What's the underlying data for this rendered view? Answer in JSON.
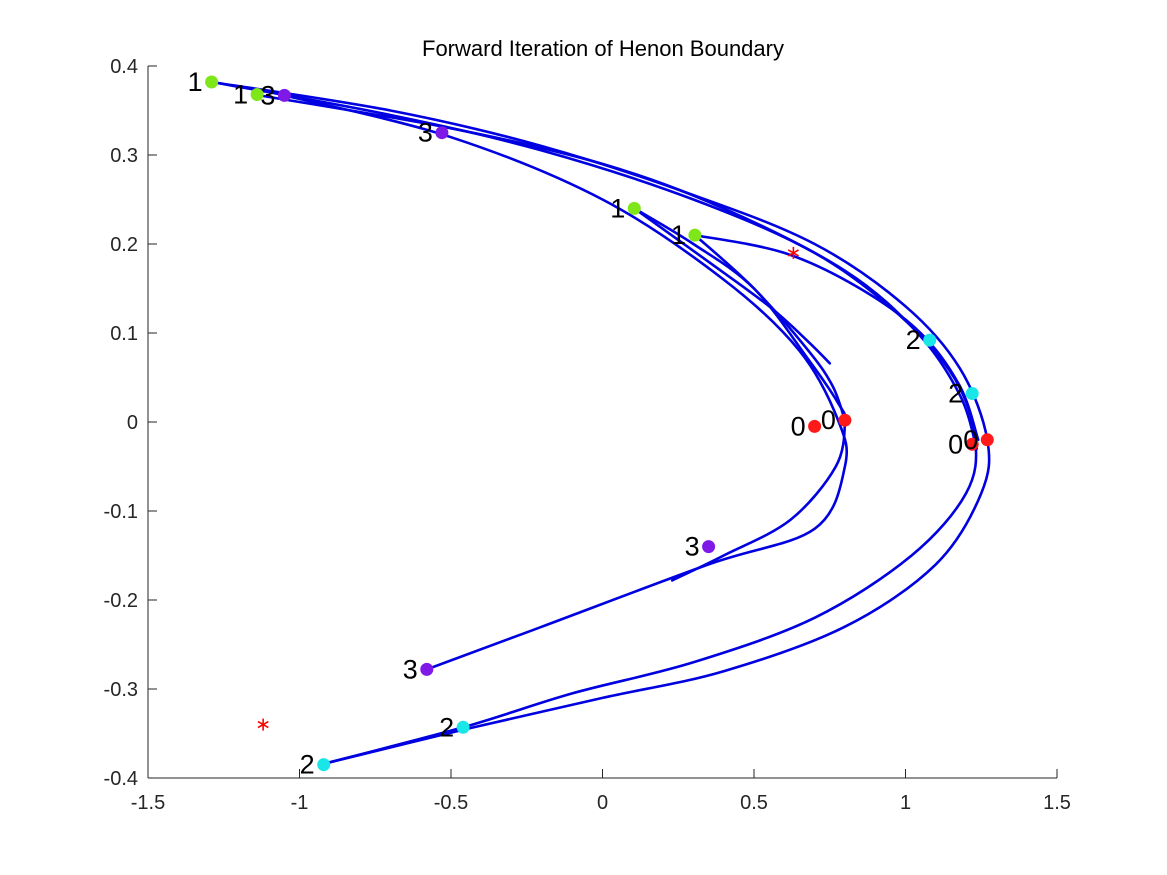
{
  "chart_data": {
    "type": "line",
    "title": "Forward Iteration of Henon Boundary",
    "xlabel": "",
    "ylabel": "",
    "xlim": [
      -1.5,
      1.5
    ],
    "ylim": [
      -0.4,
      0.4
    ],
    "xticks": [
      -1.5,
      -1,
      -0.5,
      0,
      0.5,
      1,
      1.5
    ],
    "xtick_labels": [
      "-1.5",
      "-1",
      "-0.5",
      "0",
      "0.5",
      "1",
      "1.5"
    ],
    "yticks": [
      -0.4,
      -0.3,
      -0.2,
      -0.1,
      0,
      0.1,
      0.2,
      0.3,
      0.4
    ],
    "ytick_labels": [
      "-0.4",
      "-0.3",
      "-0.2",
      "-0.1",
      "0",
      "0.1",
      "0.2",
      "0.3",
      "0.4"
    ],
    "grid": false,
    "curve_color": "#0000e0",
    "series": [
      {
        "x": [
          -1.29,
          -0.7,
          -0.2,
          0.3,
          0.7,
          1.0,
          1.18,
          1.27,
          1.25,
          1.1,
          0.8,
          0.4,
          0.0,
          -0.45,
          -0.93
        ],
        "y": [
          0.382,
          0.35,
          0.31,
          0.255,
          0.2,
          0.13,
          0.06,
          -0.02,
          -0.08,
          -0.16,
          -0.23,
          -0.28,
          -0.31,
          -0.345,
          -0.385
        ]
      },
      {
        "x": [
          -1.29,
          -0.7,
          -0.2,
          0.3,
          0.7,
          0.98,
          1.16,
          1.23,
          1.2,
          1.02,
          0.7,
          0.3,
          -0.1,
          -0.46,
          -0.93
        ],
        "y": [
          0.382,
          0.345,
          0.305,
          0.25,
          0.19,
          0.12,
          0.05,
          -0.02,
          -0.08,
          -0.15,
          -0.22,
          -0.27,
          -0.305,
          -0.343,
          -0.385
        ]
      },
      {
        "x": [
          -1.15,
          -0.5,
          0.0,
          0.4,
          0.8,
          1.04,
          1.18,
          1.235
        ],
        "y": [
          0.368,
          0.33,
          0.29,
          0.24,
          0.17,
          0.1,
          0.03,
          -0.03
        ]
      },
      {
        "x": [
          -1.05,
          -0.5,
          0.0,
          0.4,
          0.65,
          0.78,
          0.8,
          0.7,
          0.35,
          -0.2,
          -0.58
        ],
        "y": [
          0.367,
          0.32,
          0.25,
          0.16,
          0.08,
          0.0,
          -0.05,
          -0.12,
          -0.16,
          -0.23,
          -0.278
        ]
      },
      {
        "x": [
          0.105,
          0.3,
          0.5,
          0.68,
          0.78,
          0.8,
          0.77,
          0.62,
          0.4,
          0.23
        ],
        "y": [
          0.24,
          0.2,
          0.15,
          0.07,
          0.02,
          0.0,
          -0.05,
          -0.11,
          -0.15,
          -0.178
        ]
      },
      {
        "x": [
          0.105,
          0.35,
          0.55,
          0.68,
          0.75
        ],
        "y": [
          0.24,
          0.18,
          0.13,
          0.09,
          0.066
        ]
      },
      {
        "x": [
          0.305,
          0.6,
          0.85,
          1.05,
          1.18,
          1.24
        ],
        "y": [
          0.21,
          0.19,
          0.15,
          0.1,
          0.04,
          -0.02
        ]
      },
      {
        "x": [
          0.305,
          0.5,
          0.68,
          0.76,
          0.8
        ],
        "y": [
          0.21,
          0.15,
          0.08,
          0.04,
          0.002
        ]
      }
    ],
    "points": [
      {
        "x": -1.29,
        "y": 0.382,
        "label": "1",
        "color": "#7fe719"
      },
      {
        "x": -1.14,
        "y": 0.368,
        "label": "1",
        "color": "#7fe719"
      },
      {
        "x": 0.105,
        "y": 0.24,
        "label": "1",
        "color": "#7fe719"
      },
      {
        "x": 0.305,
        "y": 0.21,
        "label": "1",
        "color": "#7fe719"
      },
      {
        "x": -1.05,
        "y": 0.367,
        "label": "3",
        "color": "#7e19e7"
      },
      {
        "x": -0.53,
        "y": 0.325,
        "label": "3",
        "color": "#7e19e7"
      },
      {
        "x": 0.35,
        "y": -0.14,
        "label": "3",
        "color": "#7e19e7"
      },
      {
        "x": -0.58,
        "y": -0.278,
        "label": "3",
        "color": "#7e19e7"
      },
      {
        "x": 1.08,
        "y": 0.092,
        "label": "2",
        "color": "#19e7e7"
      },
      {
        "x": 1.22,
        "y": 0.032,
        "label": "2",
        "color": "#19e7e7"
      },
      {
        "x": -0.46,
        "y": -0.343,
        "label": "2",
        "color": "#19e7e7"
      },
      {
        "x": -0.92,
        "y": -0.385,
        "label": "2",
        "color": "#19e7e7"
      },
      {
        "x": 0.7,
        "y": -0.005,
        "label": "0",
        "color": "#ff1919"
      },
      {
        "x": 0.8,
        "y": 0.002,
        "label": "0",
        "color": "#ff1919"
      },
      {
        "x": 1.22,
        "y": -0.025,
        "label": "0",
        "color": "#ff1919"
      },
      {
        "x": 1.27,
        "y": -0.02,
        "label": "0",
        "color": "#ff1919"
      }
    ],
    "star_points": [
      {
        "x": 0.63,
        "y": 0.19,
        "color": "#ff0000"
      },
      {
        "x": -1.12,
        "y": -0.34,
        "color": "#ff0000"
      }
    ]
  }
}
